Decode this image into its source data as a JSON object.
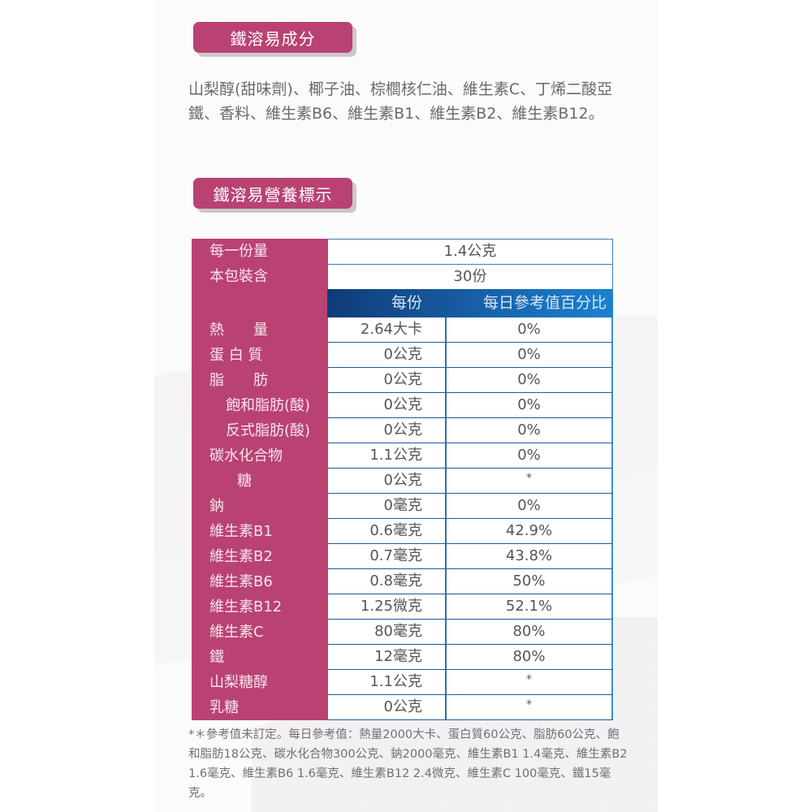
{
  "sections": {
    "ingredients_title": "鐵溶易成分",
    "ingredients_text": "山梨醇(甜味劑)、椰子油、棕櫚核仁油、維生素C、丁烯二酸亞鐵、香料、維生素B6、維生素B1、維生素B2、維生素B12。",
    "nutrition_title": "鐵溶易營養標示"
  },
  "nutrition": {
    "serving_size_label": "每一份量",
    "serving_size_value": "1.4公克",
    "servings_label": "本包裝含",
    "servings_value": "30份",
    "col_per_serving": "每份",
    "col_daily_pct": "每日參考值百分比",
    "rows": [
      {
        "name": "熱　　量",
        "per": "2.64大卡",
        "pct": "0%",
        "indent": 0
      },
      {
        "name": "蛋 白 質",
        "per": "0公克",
        "pct": "0%",
        "indent": 0
      },
      {
        "name": "脂　　肪",
        "per": "0公克",
        "pct": "0%",
        "indent": 0
      },
      {
        "name": "飽和脂肪(酸)",
        "per": "0公克",
        "pct": "0%",
        "indent": 1
      },
      {
        "name": "反式脂肪(酸)",
        "per": "0公克",
        "pct": "0%",
        "indent": 1
      },
      {
        "name": "碳水化合物",
        "per": "1.1公克",
        "pct": "0%",
        "indent": 0
      },
      {
        "name": "糖",
        "per": "0公克",
        "pct": "*",
        "indent": 2
      },
      {
        "name": "鈉",
        "per": "0毫克",
        "pct": "0%",
        "indent": 0
      },
      {
        "name": "維生素B1",
        "per": "0.6毫克",
        "pct": "42.9%",
        "indent": 0
      },
      {
        "name": "維生素B2",
        "per": "0.7毫克",
        "pct": "43.8%",
        "indent": 0
      },
      {
        "name": "維生素B6",
        "per": "0.8毫克",
        "pct": "50%",
        "indent": 0
      },
      {
        "name": "維生素B12",
        "per": "1.25微克",
        "pct": "52.1%",
        "indent": 0
      },
      {
        "name": "維生素C",
        "per": "80毫克",
        "pct": "80%",
        "indent": 0
      },
      {
        "name": "鐵",
        "per": "12毫克",
        "pct": "80%",
        "indent": 0
      },
      {
        "name": "山梨糖醇",
        "per": "1.1公克",
        "pct": "*",
        "indent": 0
      },
      {
        "name": "乳糖",
        "per": "0公克",
        "pct": "*",
        "indent": 0
      }
    ],
    "footnote": "*＊參考值未訂定。每日參考值：熱量2000大卡、蛋白質60公克、脂肪60公克、飽和脂肪18公克、碳水化合物300公克、鈉2000毫克、維生素B1 1.4毫克、維生素B2 1.6毫克、維生素B6 1.6毫克、維生素B12 2.4微克、維生素C 100毫克、鐵15毫克。"
  },
  "colors": {
    "accent_pink": "#b94273",
    "header_blue_dark": "#0f3c78",
    "header_blue_light": "#1a82d0",
    "border_blue": "#1e5a96"
  }
}
